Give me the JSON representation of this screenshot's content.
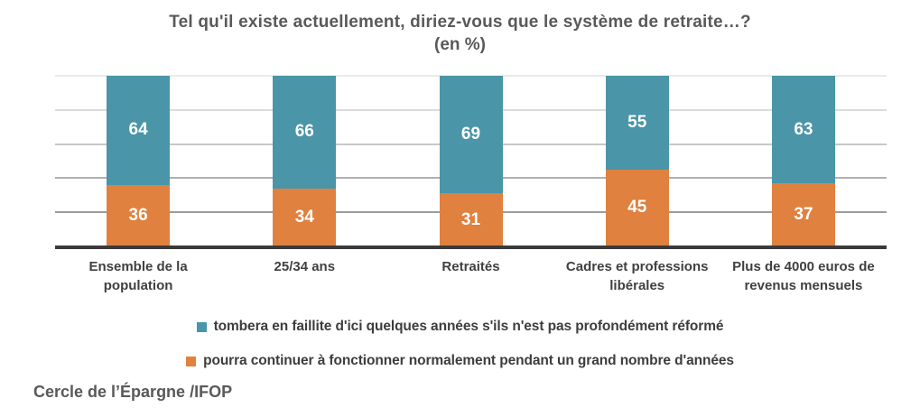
{
  "chart_data": {
    "type": "bar",
    "stacked": true,
    "title": "Tel qu'il existe actuellement, diriez-vous que le système de retraite…?",
    "subtitle": "(en %)",
    "categories": [
      "Ensemble de la population",
      "25/34 ans",
      "Retraités",
      "Cadres et professions libérales",
      "Plus de 4000 euros de revenus mensuels"
    ],
    "series": [
      {
        "name": "tombera en faillite d'ici quelques années s'ils n'est pas profondément réformé",
        "color": "#4A95A8",
        "values": [
          64,
          66,
          69,
          55,
          63
        ]
      },
      {
        "name": "pourra continuer à fonctionner normalement pendant un grand nombre d'années",
        "color": "#E0813F",
        "values": [
          36,
          34,
          31,
          45,
          37
        ]
      }
    ],
    "ylim": [
      0,
      100
    ],
    "value_labels": true,
    "legend_position": "bottom",
    "gridlines": {
      "values": [
        100,
        80,
        60,
        40,
        20
      ],
      "colors": [
        "#EAEAEA",
        "#DBDBDB",
        "#C8C8C8",
        "#B0B0B0",
        "#9C9C9C"
      ]
    },
    "axis_line_color": "#3A3A3A"
  },
  "source": {
    "text": "Cercle de l’Épargne /IFOP"
  }
}
